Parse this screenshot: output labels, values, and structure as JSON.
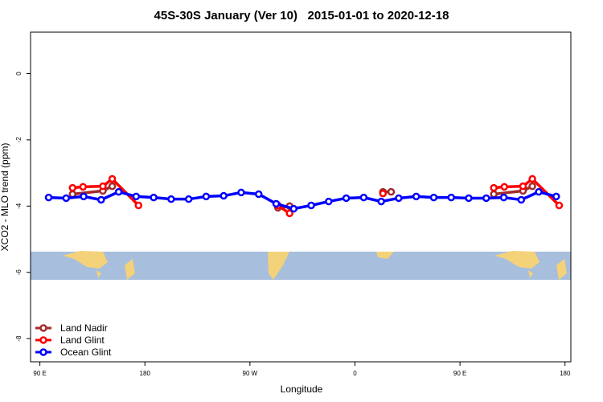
{
  "chart_data": {
    "type": "line",
    "title": "45S-30S January (Ver 10)   2015-01-01 to 2020-12-18",
    "x_label": "Longitude",
    "y_label": "XCO2 - MLO trend (ppm)",
    "xlim": [
      82,
      545
    ],
    "ylim": [
      -8.7,
      1.25
    ],
    "xticks": [
      {
        "value": 90,
        "label": "90 E"
      },
      {
        "value": 180,
        "label": "180"
      },
      {
        "value": 270,
        "label": "90 W"
      },
      {
        "value": 360,
        "label": "0"
      },
      {
        "value": 450,
        "label": "90 E"
      },
      {
        "value": 540,
        "label": "180"
      }
    ],
    "yticks": [
      0,
      -2,
      -4,
      -6,
      -8
    ],
    "legend": "bottom-left",
    "series": [
      {
        "name": "Land Nadir",
        "color": "#a52a2a",
        "x": [
          118,
          144,
          152,
          null,
          294,
          304,
          null,
          384,
          391,
          null,
          479,
          504,
          512
        ],
        "values": [
          -3.64,
          -3.54,
          -3.4,
          null,
          -4.05,
          -4.0,
          null,
          -3.57,
          -3.57,
          null,
          -3.64,
          -3.54,
          -3.4
        ]
      },
      {
        "name": "Land Glint",
        "color": "#ff0000",
        "x": [
          118,
          127,
          144,
          152,
          174.5,
          null,
          294,
          304,
          null,
          384,
          null,
          479,
          488,
          504,
          512,
          535
        ],
        "values": [
          -3.45,
          -3.42,
          -3.4,
          -3.18,
          -3.98,
          null,
          -3.98,
          -4.22,
          null,
          -3.62,
          null,
          -3.45,
          -3.42,
          -3.4,
          -3.18,
          -3.98
        ]
      },
      {
        "name": "Ocean Glint",
        "color": "#0000ff",
        "x": [
          97.5,
          112.5,
          127.5,
          142.5,
          157.5,
          172.5,
          187.5,
          202.5,
          217.5,
          232.5,
          247.5,
          262.5,
          277.5,
          292.5,
          307.5,
          322.5,
          337.5,
          352.5,
          367.5,
          382.5,
          397.5,
          412.5,
          427.5,
          442.5,
          457.5,
          472.5,
          487.5,
          502.5,
          517.5,
          532.5
        ],
        "values": [
          -3.74,
          -3.76,
          -3.71,
          -3.81,
          -3.57,
          -3.71,
          -3.74,
          -3.79,
          -3.79,
          -3.71,
          -3.69,
          -3.59,
          -3.64,
          -3.93,
          -4.08,
          -3.98,
          -3.86,
          -3.76,
          -3.74,
          -3.86,
          -3.76,
          -3.71,
          -3.74,
          -3.74,
          -3.76,
          -3.76,
          -3.74,
          -3.81,
          -3.57,
          -3.71
        ]
      }
    ]
  }
}
